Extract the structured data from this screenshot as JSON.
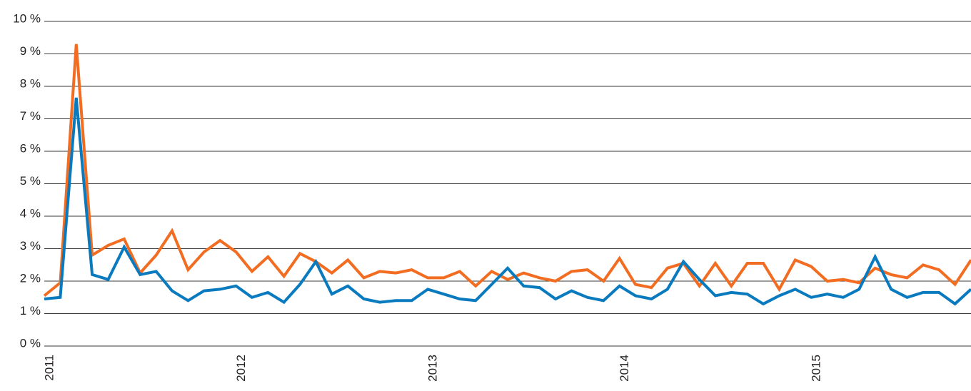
{
  "chart_data": {
    "type": "line",
    "categories": [
      "2011",
      null,
      null,
      null,
      null,
      null,
      null,
      null,
      null,
      null,
      null,
      null,
      "2012",
      null,
      null,
      null,
      null,
      null,
      null,
      null,
      null,
      null,
      null,
      null,
      "2013",
      null,
      null,
      null,
      null,
      null,
      null,
      null,
      null,
      null,
      null,
      null,
      "2014",
      null,
      null,
      null,
      null,
      null,
      null,
      null,
      null,
      null,
      null,
      null,
      "2015",
      null,
      null,
      null,
      null,
      null,
      null,
      null,
      null,
      null,
      null
    ],
    "series": [
      {
        "color": "#f26d21",
        "values": [
          1.55,
          1.95,
          9.3,
          2.8,
          3.1,
          3.3,
          2.25,
          2.8,
          3.55,
          2.35,
          2.9,
          3.25,
          2.9,
          2.3,
          2.75,
          2.15,
          2.85,
          2.6,
          2.25,
          2.65,
          2.1,
          2.3,
          2.25,
          2.35,
          2.1,
          2.1,
          2.3,
          1.85,
          2.3,
          2.05,
          2.25,
          2.1,
          2.0,
          2.3,
          2.35,
          2.0,
          2.7,
          1.9,
          1.8,
          2.4,
          2.55,
          1.85,
          2.55,
          1.85,
          2.55,
          2.55,
          1.75,
          2.65,
          2.45,
          2.0,
          2.05,
          1.95,
          2.4,
          2.2,
          2.1,
          2.5,
          2.35,
          1.9,
          2.65
        ]
      },
      {
        "color": "#0a7abf",
        "values": [
          1.45,
          1.5,
          7.65,
          2.2,
          2.05,
          3.05,
          2.2,
          2.3,
          1.7,
          1.4,
          1.7,
          1.75,
          1.85,
          1.5,
          1.65,
          1.35,
          1.9,
          2.6,
          1.6,
          1.85,
          1.45,
          1.35,
          1.4,
          1.4,
          1.75,
          1.6,
          1.45,
          1.4,
          1.9,
          2.4,
          1.85,
          1.8,
          1.45,
          1.7,
          1.5,
          1.4,
          1.85,
          1.55,
          1.45,
          1.75,
          2.6,
          2.05,
          1.55,
          1.65,
          1.6,
          1.3,
          1.55,
          1.75,
          1.5,
          1.6,
          1.5,
          1.75,
          2.75,
          1.75,
          1.5,
          1.65,
          1.65,
          1.3,
          1.75
        ]
      }
    ],
    "ylim": [
      0,
      10
    ],
    "yticks": [
      {
        "value": 0,
        "label": "0 %"
      },
      {
        "value": 1,
        "label": "1 %"
      },
      {
        "value": 2,
        "label": "2 %"
      },
      {
        "value": 3,
        "label": "3 %"
      },
      {
        "value": 4,
        "label": "4 %"
      },
      {
        "value": 5,
        "label": "5 %"
      },
      {
        "value": 6,
        "label": "6 %"
      },
      {
        "value": 7,
        "label": "7 %"
      },
      {
        "value": 8,
        "label": "8 %"
      },
      {
        "value": 9,
        "label": "9 %"
      },
      {
        "value": 10,
        "label": "10 %"
      }
    ],
    "grid": true
  }
}
